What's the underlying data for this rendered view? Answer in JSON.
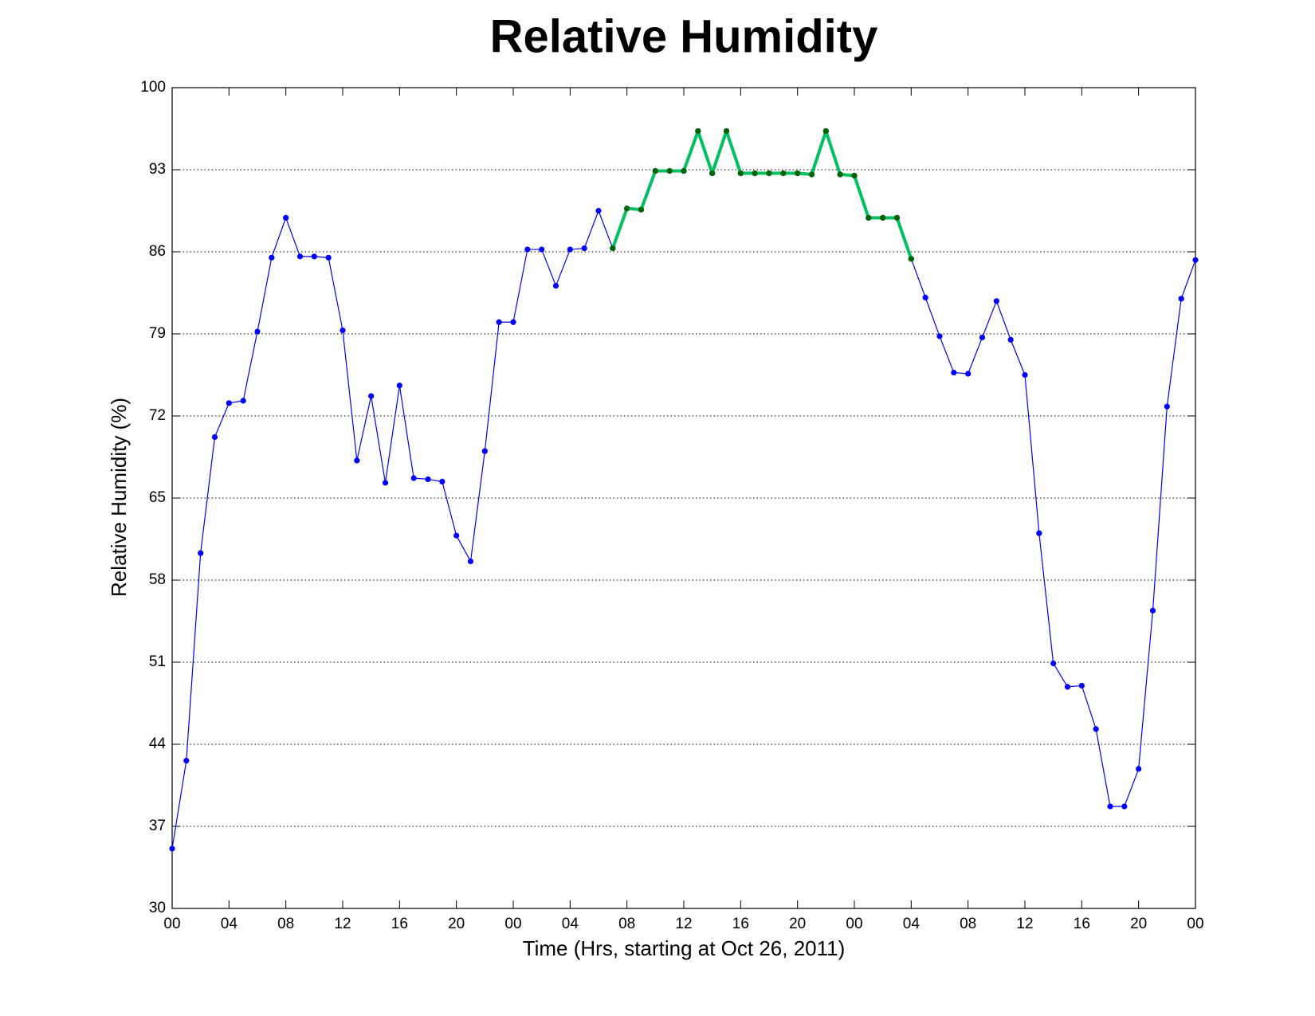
{
  "chart_data": {
    "type": "line",
    "title": "Relative Humidity",
    "xlabel": "Time (Hrs, starting at Oct 26, 2011)",
    "ylabel": "Relative Humidity (%)",
    "x": [
      0,
      1,
      2,
      3,
      4,
      5,
      6,
      7,
      8,
      9,
      10,
      11,
      12,
      13,
      14,
      15,
      16,
      17,
      18,
      19,
      20,
      21,
      22,
      23,
      24,
      25,
      26,
      27,
      28,
      29,
      30,
      31,
      32,
      33,
      34,
      35,
      36,
      37,
      38,
      39,
      40,
      41,
      42,
      43,
      44,
      45,
      46,
      47,
      48,
      49,
      50,
      51,
      52,
      53,
      54,
      55,
      56,
      57,
      58,
      59,
      60,
      61,
      62,
      63,
      64,
      65,
      66,
      67,
      68,
      69,
      70,
      71,
      72
    ],
    "series": [
      {
        "color": "#0000ff",
        "marker_color": "#0000ff",
        "line_width": 1.2,
        "values": [
          35.1,
          42.6,
          60.3,
          70.2,
          73.1,
          73.3,
          79.2,
          85.5,
          88.9,
          85.6,
          85.6,
          85.5,
          79.3,
          68.2,
          73.7,
          66.3,
          74.6,
          66.7,
          66.6,
          66.4,
          61.8,
          59.6,
          69.0,
          80.0,
          80.0,
          86.2,
          86.2,
          83.1,
          86.2,
          86.3,
          89.5,
          86.3,
          89.7,
          89.6,
          92.9,
          92.9,
          92.9,
          96.3,
          92.7,
          96.3,
          92.7,
          92.7,
          92.7,
          92.7,
          92.7,
          92.6,
          96.3,
          92.6,
          92.5,
          88.9,
          88.9,
          88.9,
          85.4,
          82.1,
          78.8,
          75.7,
          75.6,
          78.7,
          81.8,
          78.5,
          75.5,
          62.0,
          50.9,
          48.9,
          49.0,
          45.3,
          38.7,
          38.7,
          41.9,
          55.4,
          72.8,
          82.0,
          85.3
        ]
      },
      {
        "color": "#00c060",
        "marker_color": "#006400",
        "line_width": 4,
        "values": [
          null,
          null,
          null,
          null,
          null,
          null,
          null,
          null,
          null,
          null,
          null,
          null,
          null,
          null,
          null,
          null,
          null,
          null,
          null,
          null,
          null,
          null,
          null,
          null,
          null,
          null,
          null,
          null,
          null,
          null,
          null,
          86.3,
          89.7,
          89.6,
          92.9,
          92.9,
          92.9,
          96.3,
          92.7,
          96.3,
          92.7,
          92.7,
          92.7,
          92.7,
          92.7,
          92.6,
          96.3,
          92.6,
          92.5,
          88.9,
          88.9,
          88.9,
          85.4,
          null,
          null,
          null,
          null,
          null,
          null,
          null,
          null,
          null,
          null,
          null,
          null,
          null,
          null,
          null,
          null,
          null,
          null,
          null,
          null
        ]
      }
    ],
    "xlim": [
      0,
      72
    ],
    "xticks": [
      {
        "value": 0,
        "label": "00"
      },
      {
        "value": 4,
        "label": "04"
      },
      {
        "value": 8,
        "label": "08"
      },
      {
        "value": 12,
        "label": "12"
      },
      {
        "value": 16,
        "label": "16"
      },
      {
        "value": 20,
        "label": "20"
      },
      {
        "value": 24,
        "label": "00"
      },
      {
        "value": 28,
        "label": "04"
      },
      {
        "value": 32,
        "label": "08"
      },
      {
        "value": 36,
        "label": "12"
      },
      {
        "value": 40,
        "label": "16"
      },
      {
        "value": 44,
        "label": "20"
      },
      {
        "value": 48,
        "label": "00"
      },
      {
        "value": 52,
        "label": "04"
      },
      {
        "value": 56,
        "label": "08"
      },
      {
        "value": 60,
        "label": "12"
      },
      {
        "value": 64,
        "label": "16"
      },
      {
        "value": 68,
        "label": "20"
      },
      {
        "value": 72,
        "label": "00"
      }
    ],
    "ylim": [
      30,
      100
    ],
    "yticks": [
      30,
      37,
      44,
      51,
      58,
      65,
      72,
      79,
      86,
      93,
      100
    ],
    "grid": true
  }
}
